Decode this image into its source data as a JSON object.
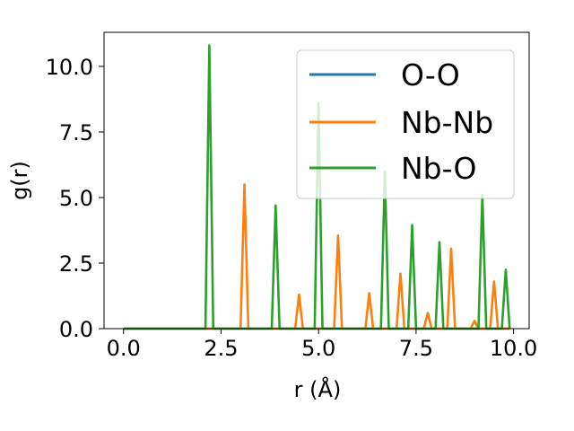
{
  "chart_data": {
    "type": "line",
    "xlabel": "r (Å)",
    "ylabel": "g(r)",
    "xlim": [
      -0.5,
      10.4
    ],
    "ylim": [
      0,
      11.3
    ],
    "xticks": [
      0.0,
      2.5,
      5.0,
      7.5,
      10.0
    ],
    "yticks": [
      0.0,
      2.5,
      5.0,
      7.5,
      10.0
    ],
    "xtick_labels": [
      "0.0",
      "2.5",
      "5.0",
      "7.5",
      "10.0"
    ],
    "ytick_labels": [
      "0.0",
      "2.5",
      "5.0",
      "7.5",
      "10.0"
    ],
    "grid": false,
    "legend_position": "top-right",
    "series": [
      {
        "name": "O-O",
        "color": "#1f77b4",
        "x": [
          0.0,
          2.0,
          9.9
        ],
        "y": [
          0.0,
          0.0,
          0.0
        ]
      },
      {
        "name": "Nb-Nb",
        "color": "#ff7f0e",
        "x": [
          0.0,
          3.0,
          3.1,
          3.2,
          4.4,
          4.5,
          4.6,
          5.4,
          5.5,
          5.6,
          6.2,
          6.3,
          6.4,
          7.0,
          7.1,
          7.2,
          7.7,
          7.8,
          7.9,
          8.3,
          8.4,
          8.5,
          8.9,
          9.0,
          9.1,
          9.4,
          9.5,
          9.6,
          9.9
        ],
        "y": [
          0.0,
          0.0,
          5.5,
          0.0,
          0.0,
          1.3,
          0.0,
          0.0,
          3.55,
          0.0,
          0.0,
          1.35,
          0.0,
          0.0,
          2.1,
          0.0,
          0.0,
          0.6,
          0.0,
          0.0,
          3.05,
          0.0,
          0.0,
          0.3,
          0.0,
          0.0,
          1.8,
          0.0,
          0.0
        ]
      },
      {
        "name": "Nb-O",
        "color": "#2ca02c",
        "x": [
          0.0,
          2.1,
          2.2,
          2.3,
          3.8,
          3.9,
          4.0,
          4.9,
          5.0,
          5.1,
          6.6,
          6.7,
          6.8,
          7.3,
          7.4,
          7.5,
          8.0,
          8.1,
          8.2,
          9.1,
          9.2,
          9.3,
          9.7,
          9.8,
          9.9
        ],
        "y": [
          0.0,
          0.0,
          10.8,
          0.0,
          0.0,
          4.7,
          0.0,
          0.0,
          8.6,
          0.0,
          0.0,
          6.0,
          0.0,
          0.0,
          3.95,
          0.0,
          0.0,
          3.3,
          0.0,
          0.0,
          5.1,
          0.0,
          0.0,
          2.25,
          0.0
        ]
      }
    ]
  }
}
